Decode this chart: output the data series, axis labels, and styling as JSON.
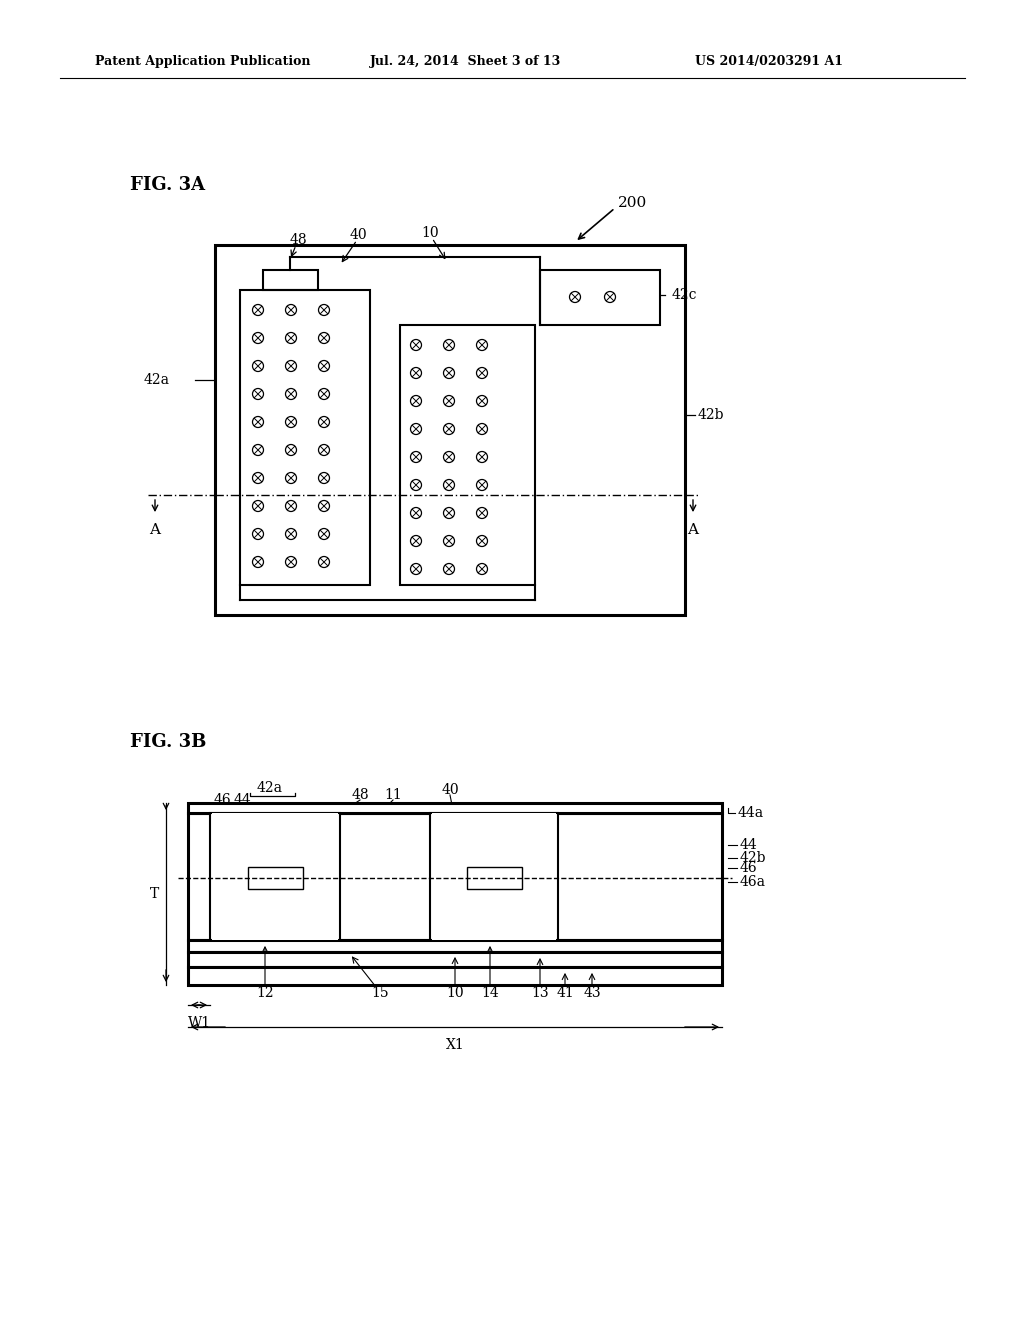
{
  "bg_color": "#ffffff",
  "header_left": "Patent Application Publication",
  "header_mid": "Jul. 24, 2014  Sheet 3 of 13",
  "header_right": "US 2014/0203291 A1",
  "fig3a_label": "FIG. 3A",
  "fig3b_label": "FIG. 3B"
}
